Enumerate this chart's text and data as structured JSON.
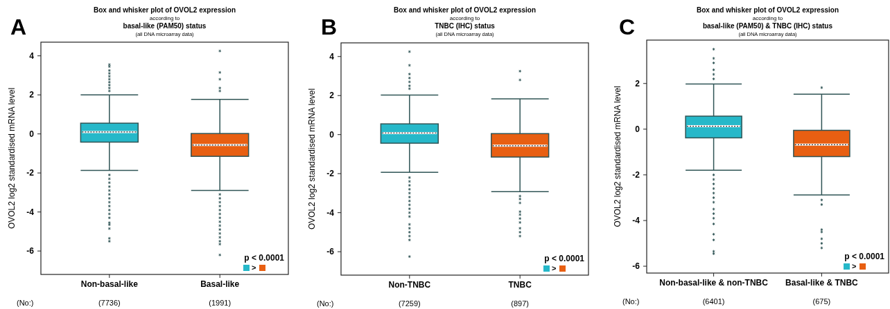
{
  "chart_data": [
    {
      "type": "box",
      "title": "Box and whisker plot of OVOL2 expression",
      "subtitle": "according to",
      "ylabel": "OVOL2 log2 standardised mRNA level",
      "categories": [
        "Non-basal-like",
        "Basal-like"
      ],
      "colors": [
        "#26b8c9",
        "#e85f12"
      ],
      "ylim": [
        -7.2,
        4.7
      ],
      "yticks": [
        -6,
        -4,
        -2,
        0,
        2,
        4
      ],
      "boxes": [
        {
          "low": -1.87,
          "q1": -0.42,
          "median": 0.1,
          "q3": 0.55,
          "high": 2.0,
          "outliers": [
            3.55,
            3.45,
            3.25,
            3.1,
            2.95,
            2.8,
            2.65,
            2.5,
            2.35,
            2.2,
            -2.1,
            -2.3,
            -2.5,
            -2.7,
            -2.9,
            -3.1,
            -3.3,
            -3.5,
            -3.7,
            -3.9,
            -4.1,
            -4.3,
            -4.55,
            -4.65,
            -4.85,
            -5.35,
            -5.5
          ]
        },
        {
          "low": -2.9,
          "q1": -1.15,
          "median": -0.57,
          "q3": 0.02,
          "high": 1.77,
          "outliers": [
            4.25,
            3.15,
            2.8,
            2.35,
            2.2,
            -3.1,
            -3.3,
            -3.5,
            -3.7,
            -3.9,
            -4.1,
            -4.3,
            -4.5,
            -4.7,
            -4.9,
            -5.1,
            -5.3,
            -5.5,
            -5.65,
            -6.2
          ]
        }
      ],
      "annotations": [
        "A",
        "basal-like (PAM50) status",
        "(all DNA microarray data)",
        "p < 0.0001",
        "(No:)",
        "(7736)",
        "(1991)",
        ">"
      ]
    },
    {
      "type": "box",
      "title": "Box and whisker plot of OVOL2 expression",
      "subtitle": "according to",
      "ylabel": "OVOL2 log2 standardised mRNA level",
      "categories": [
        "Non-TNBC",
        "TNBC"
      ],
      "colors": [
        "#26b8c9",
        "#e85f12"
      ],
      "ylim": [
        -7.2,
        4.7
      ],
      "yticks": [
        -6,
        -4,
        -2,
        0,
        2,
        4
      ],
      "boxes": [
        {
          "low": -1.93,
          "q1": -0.44,
          "median": 0.08,
          "q3": 0.55,
          "high": 2.03,
          "outliers": [
            4.25,
            3.55,
            3.1,
            2.9,
            2.7,
            2.5,
            2.35,
            -2.2,
            -2.4,
            -2.6,
            -2.8,
            -3.0,
            -3.2,
            -3.4,
            -3.6,
            -3.8,
            -4.0,
            -4.2,
            -4.6,
            -4.8,
            -5.0,
            -5.2,
            -5.4,
            -6.25
          ]
        },
        {
          "low": -2.92,
          "q1": -1.15,
          "median": -0.57,
          "q3": 0.05,
          "high": 1.83,
          "outliers": [
            3.25,
            2.8,
            -3.15,
            -3.3,
            -3.5,
            -3.95,
            -4.1,
            -4.3,
            -4.5,
            -4.8,
            -5.0,
            -5.2
          ]
        }
      ],
      "annotations": [
        "B",
        "TNBC (IHC) status",
        "(all DNA microarray data)",
        "p < 0.0001",
        "(No:)",
        "(7259)",
        "(897)",
        ">"
      ]
    },
    {
      "type": "box",
      "title": "Box and whisker plot of OVOL2 expression",
      "subtitle": "according to",
      "ylabel": "OVOL2 log2 standardised mRNA level",
      "categories": [
        "Non-basal-like & non-TNBC",
        "Basal-like & TNBC"
      ],
      "colors": [
        "#26b8c9",
        "#e85f12"
      ],
      "ylim": [
        -6.3,
        3.9
      ],
      "yticks": [
        -6,
        -4,
        -2,
        0,
        2
      ],
      "boxes": [
        {
          "low": -1.8,
          "q1": -0.38,
          "median": 0.13,
          "q3": 0.57,
          "high": 1.98,
          "outliers": [
            3.5,
            3.1,
            2.9,
            2.6,
            2.4,
            2.2,
            -2.0,
            -2.2,
            -2.4,
            -2.6,
            -2.8,
            -3.0,
            -3.2,
            -3.5,
            -3.7,
            -3.9,
            -4.15,
            -4.6,
            -4.85,
            -5.35,
            -5.45
          ]
        },
        {
          "low": -2.88,
          "q1": -1.2,
          "median": -0.68,
          "q3": -0.05,
          "high": 1.53,
          "outliers": [
            1.82,
            -3.1,
            -3.3,
            -4.4,
            -4.5,
            -4.8,
            -5.0,
            -5.2
          ]
        }
      ],
      "annotations": [
        "C",
        "basal-like (PAM50) & TNBC (IHC) status",
        "(all DNA microarray data)",
        "p < 0.0001",
        "(No:)",
        "(6401)",
        "(675)",
        ">"
      ]
    }
  ]
}
